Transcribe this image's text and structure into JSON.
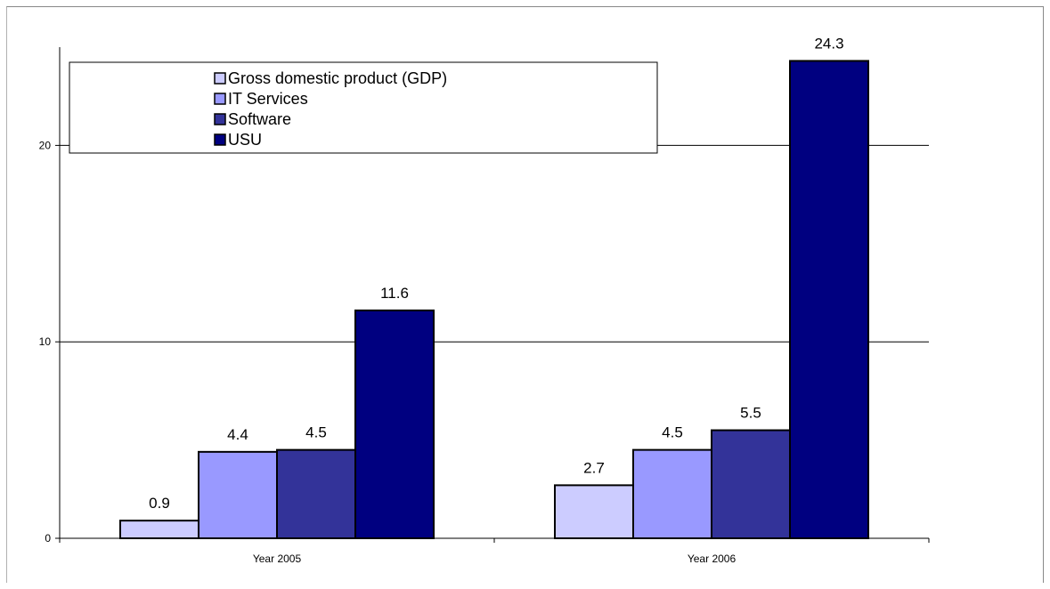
{
  "chart_data": {
    "type": "bar",
    "title": "",
    "xlabel": "",
    "ylabel": "",
    "categories": [
      "Year 2005",
      "Year 2006"
    ],
    "series": [
      {
        "name": "Gross domestic product (GDP)",
        "values": [
          0.9,
          2.7
        ],
        "color": "#ccccff"
      },
      {
        "name": "IT Services",
        "values": [
          4.4,
          4.5
        ],
        "color": "#9999ff"
      },
      {
        "name": "Software",
        "values": [
          4.5,
          5.5
        ],
        "color": "#333399"
      },
      {
        "name": "USU",
        "values": [
          11.6,
          24.3
        ],
        "color": "#000080"
      }
    ],
    "data_labels": [
      [
        "0.9",
        "2.7"
      ],
      [
        "4.4",
        "4.5"
      ],
      [
        "4.5",
        "5.5"
      ],
      [
        "11.6",
        "24.3"
      ]
    ],
    "yticks": [
      "0",
      "10",
      "20"
    ],
    "ylim": [
      0,
      25
    ],
    "grid": "horizontal major gridlines",
    "legend": "top-left, inside plot"
  }
}
